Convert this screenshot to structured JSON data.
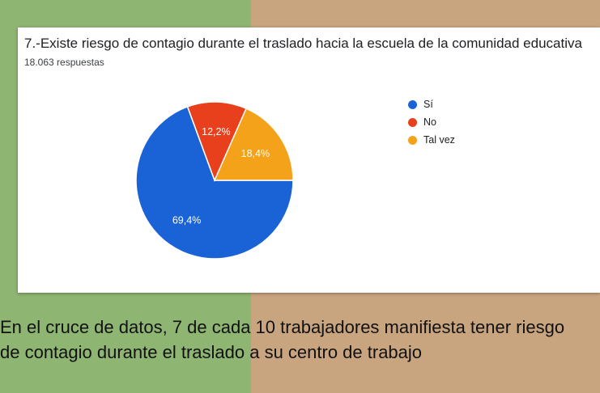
{
  "card": {
    "title": "7.-Existe riesgo de contagio durante el traslado hacia la escuela de la comunidad educativa",
    "responses": "18.063 respuestas"
  },
  "chart_data": {
    "type": "pie",
    "categories": [
      "Sí",
      "No",
      "Tal vez"
    ],
    "values": [
      69.4,
      12.2,
      18.4
    ],
    "labels": [
      "69,4%",
      "12,2%",
      "18,4%"
    ],
    "colors": [
      "#1a63d6",
      "#e8401c",
      "#f5a21b"
    ],
    "legend_position": "right"
  },
  "caption": {
    "line1": "En el cruce de datos, 7 de cada 10 trabajadores manifiesta tener riesgo",
    "line2": "de contagio durante el traslado a su centro de trabajo"
  }
}
